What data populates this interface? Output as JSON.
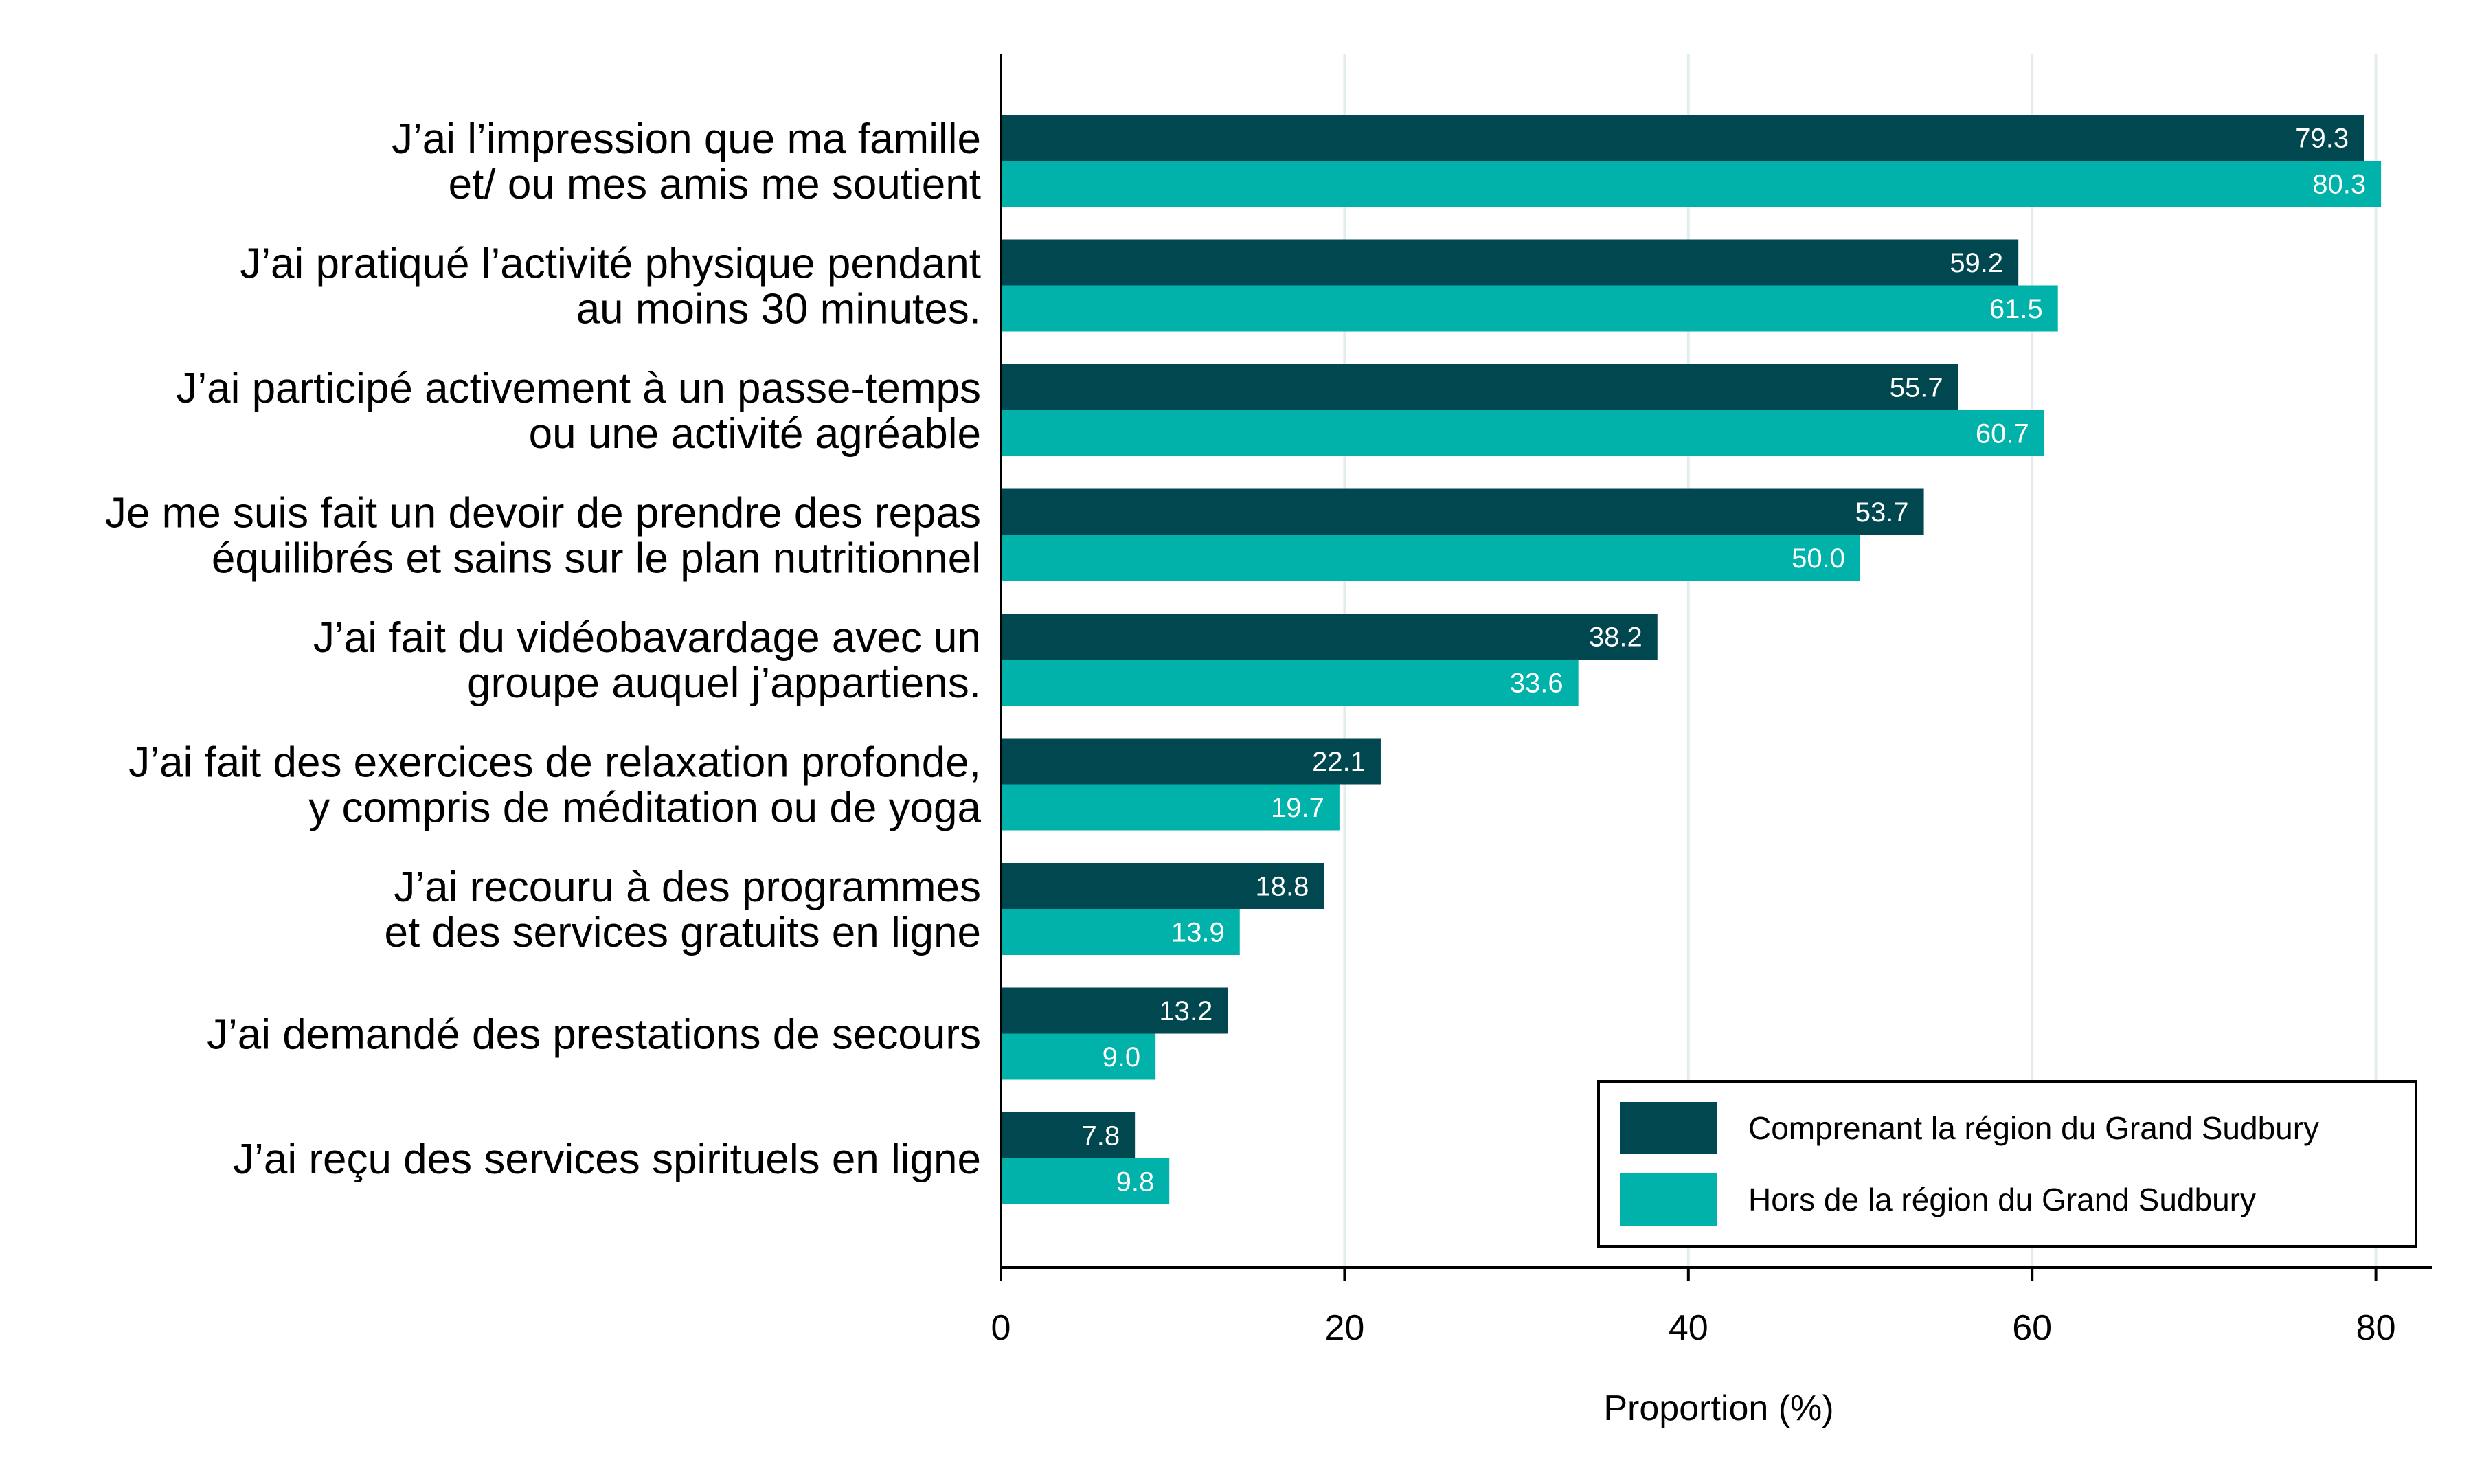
{
  "chart_data": {
    "type": "bar",
    "orientation": "horizontal",
    "categories": [
      [
        "J’ai l’impression que ma famille",
        "et/ ou mes amis me soutient"
      ],
      [
        "J’ai pratiqué l’activité physique pendant",
        "au moins 30 minutes."
      ],
      [
        "J’ai participé activement à un passe-temps",
        "ou une activité agréable"
      ],
      [
        "Je me suis fait un devoir de prendre des repas",
        "équilibrés et sains sur le plan nutritionnel"
      ],
      [
        "J’ai fait du vidéobavardage avec un",
        "groupe auquel j’appartiens."
      ],
      [
        "J’ai fait des exercices de relaxation profonde,",
        "y compris de méditation ou de yoga"
      ],
      [
        "J’ai recouru à des programmes",
        "et des services gratuits en ligne"
      ],
      [
        "J’ai demandé des prestations de secours"
      ],
      [
        "J’ai reçu des services spirituels en ligne"
      ]
    ],
    "series": [
      {
        "name": "Comprenant la région du Grand Sudbury",
        "color": "#00474f",
        "values": [
          79.3,
          59.2,
          55.7,
          53.7,
          38.2,
          22.1,
          18.8,
          13.2,
          7.8
        ],
        "labels": [
          "79.3",
          "59.2",
          "55.7",
          "53.7",
          "38.2",
          "22.1",
          "18.8",
          "13.2",
          "7.8"
        ]
      },
      {
        "name": "Hors de la région du Grand Sudbury",
        "color": "#00b2a9",
        "values": [
          80.3,
          61.5,
          60.7,
          50.0,
          33.6,
          19.7,
          13.9,
          9.0,
          9.8
        ],
        "labels": [
          "80.3",
          "61.5",
          "60.7",
          "50.0",
          "33.6",
          "19.7",
          "13.9",
          "9.0",
          "9.8"
        ]
      }
    ],
    "xlabel": "Proportion (%)",
    "xlim": [
      0,
      83
    ],
    "xticks": [
      0,
      20,
      40,
      60,
      80
    ],
    "xtick_labels": [
      "0",
      "20",
      "40",
      "60",
      "80"
    ],
    "grid": "vertical",
    "grid_color": "#e3ecef",
    "legend_position": "bottom-right"
  }
}
